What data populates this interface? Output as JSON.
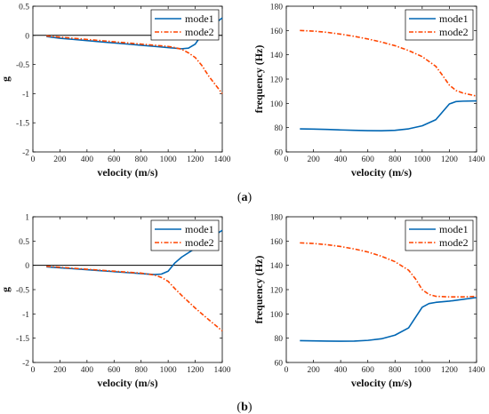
{
  "colors": {
    "mode1": "#0066b3",
    "mode2": "#ff4500",
    "axis": "#000000"
  },
  "captions": [
    {
      "open": "(",
      "letter": "a",
      "close": ")"
    },
    {
      "open": "(",
      "letter": "b",
      "close": ")"
    }
  ],
  "chart_data": [
    {
      "id": "a-damping",
      "type": "line",
      "xlabel": "velocity (m/s)",
      "ylabel": "g",
      "xlim": [
        0,
        1400
      ],
      "ylim": [
        -2,
        0.5
      ],
      "xticks": [
        0,
        200,
        400,
        600,
        800,
        1000,
        1200,
        1400
      ],
      "yticks": [
        -2,
        -1.5,
        -1,
        -0.5,
        0,
        0.5
      ],
      "zero_line": true,
      "legend": "top-right",
      "series": [
        {
          "name": "mode1",
          "style": "solid",
          "x": [
            100,
            200,
            300,
            400,
            500,
            600,
            700,
            800,
            900,
            1000,
            1100,
            1150,
            1200,
            1250,
            1300,
            1350,
            1400
          ],
          "y": [
            -0.02,
            -0.05,
            -0.07,
            -0.09,
            -0.11,
            -0.13,
            -0.15,
            -0.17,
            -0.19,
            -0.21,
            -0.23,
            -0.22,
            -0.15,
            0.02,
            0.13,
            0.21,
            0.3
          ]
        },
        {
          "name": "mode2",
          "style": "dashdot",
          "x": [
            100,
            200,
            300,
            400,
            500,
            600,
            700,
            800,
            900,
            1000,
            1050,
            1100,
            1150,
            1200,
            1250,
            1300,
            1350,
            1400
          ],
          "y": [
            -0.01,
            -0.03,
            -0.05,
            -0.07,
            -0.09,
            -0.11,
            -0.13,
            -0.15,
            -0.17,
            -0.19,
            -0.21,
            -0.24,
            -0.3,
            -0.38,
            -0.52,
            -0.7,
            -0.85,
            -1.0
          ]
        }
      ]
    },
    {
      "id": "a-frequency",
      "type": "line",
      "xlabel": "velocity (m/s)",
      "ylabel": "frequency (Hz)",
      "xlim": [
        0,
        1400
      ],
      "ylim": [
        60,
        180
      ],
      "xticks": [
        0,
        200,
        400,
        600,
        800,
        1000,
        1200,
        1400
      ],
      "yticks": [
        60,
        80,
        100,
        120,
        140,
        160,
        180
      ],
      "zero_line": false,
      "legend": "top-right",
      "series": [
        {
          "name": "mode1",
          "style": "solid",
          "x": [
            100,
            200,
            300,
            400,
            500,
            600,
            700,
            800,
            900,
            1000,
            1100,
            1150,
            1200,
            1250,
            1300,
            1400
          ],
          "y": [
            79,
            78.8,
            78.5,
            78.1,
            77.8,
            77.5,
            77.4,
            77.8,
            79,
            81.5,
            86.5,
            93,
            99.5,
            101.5,
            101.8,
            102
          ]
        },
        {
          "name": "mode2",
          "style": "dashdot",
          "x": [
            100,
            200,
            300,
            400,
            500,
            600,
            700,
            800,
            900,
            1000,
            1100,
            1150,
            1200,
            1250,
            1300,
            1400
          ],
          "y": [
            160,
            159.5,
            158.5,
            157,
            155.2,
            153,
            150.5,
            147.5,
            143.5,
            138.5,
            130.5,
            123,
            115,
            110.5,
            108.5,
            106
          ]
        }
      ]
    },
    {
      "id": "b-damping",
      "type": "line",
      "xlabel": "velocity (m/s)",
      "ylabel": "g",
      "xlim": [
        0,
        1400
      ],
      "ylim": [
        -2,
        1
      ],
      "xticks": [
        0,
        200,
        400,
        600,
        800,
        1000,
        1200,
        1400
      ],
      "yticks": [
        -2,
        -1.5,
        -1,
        -0.5,
        0,
        0.5,
        1
      ],
      "zero_line": true,
      "legend": "top-right",
      "series": [
        {
          "name": "mode1",
          "style": "solid",
          "x": [
            100,
            200,
            300,
            400,
            500,
            600,
            700,
            800,
            900,
            950,
            1000,
            1050,
            1100,
            1200,
            1300,
            1400
          ],
          "y": [
            -0.03,
            -0.05,
            -0.07,
            -0.09,
            -0.11,
            -0.13,
            -0.15,
            -0.17,
            -0.19,
            -0.18,
            -0.12,
            0.05,
            0.17,
            0.35,
            0.55,
            0.72
          ]
        },
        {
          "name": "mode2",
          "style": "dashdot",
          "x": [
            100,
            200,
            300,
            400,
            500,
            600,
            700,
            800,
            900,
            950,
            1000,
            1050,
            1100,
            1200,
            1300,
            1400
          ],
          "y": [
            -0.02,
            -0.04,
            -0.06,
            -0.08,
            -0.1,
            -0.12,
            -0.14,
            -0.16,
            -0.2,
            -0.25,
            -0.33,
            -0.48,
            -0.62,
            -0.88,
            -1.12,
            -1.35
          ]
        }
      ]
    },
    {
      "id": "b-frequency",
      "type": "line",
      "xlabel": "velocity (m/s)",
      "ylabel": "frequency (Hz)",
      "xlim": [
        0,
        1400
      ],
      "ylim": [
        60,
        180
      ],
      "xticks": [
        0,
        200,
        400,
        600,
        800,
        1000,
        1200,
        1400
      ],
      "yticks": [
        60,
        80,
        100,
        120,
        140,
        160,
        180
      ],
      "zero_line": false,
      "legend": "top-right",
      "series": [
        {
          "name": "mode1",
          "style": "solid",
          "x": [
            100,
            200,
            300,
            400,
            500,
            600,
            700,
            800,
            900,
            950,
            1000,
            1050,
            1100,
            1200,
            1300,
            1400
          ],
          "y": [
            78,
            77.8,
            77.6,
            77.5,
            77.6,
            78.2,
            79.5,
            82.5,
            88.5,
            97,
            105.5,
            108.5,
            109.5,
            110.5,
            112,
            113.5
          ]
        },
        {
          "name": "mode2",
          "style": "dashdot",
          "x": [
            100,
            200,
            300,
            400,
            500,
            600,
            700,
            800,
            900,
            950,
            1000,
            1050,
            1100,
            1200,
            1300,
            1400
          ],
          "y": [
            158.5,
            158,
            157,
            155.5,
            153.5,
            151,
            147.5,
            143,
            136,
            129,
            120,
            116,
            114.5,
            114,
            114,
            114.5
          ]
        }
      ]
    }
  ]
}
